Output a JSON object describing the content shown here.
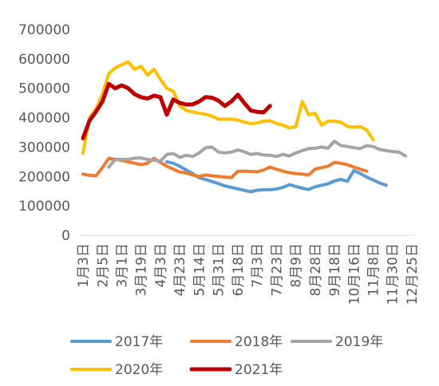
{
  "chart_data": {
    "type": "line",
    "ylim": [
      0,
      700000
    ],
    "yticks": [
      0,
      100000,
      200000,
      300000,
      400000,
      500000,
      600000,
      700000
    ],
    "x_tick_labels": [
      "1月3日",
      "2月5日",
      "3月1日",
      "3月19日",
      "4月3日",
      "4月23日",
      "5月14日",
      "5月31日",
      "6月18日",
      "7月3日",
      "7月23日",
      "8月9日",
      "8月28日",
      "9月18日",
      "10月16日",
      "11月8日",
      "11月30日",
      "12月25日"
    ],
    "x_count": 52,
    "legend_position": "bottom",
    "grid": false,
    "series": [
      {
        "name": "2017年",
        "color": "#5B9BD5",
        "x_start": 13,
        "values": [
          250000,
          245000,
          235000,
          222000,
          210000,
          196000,
          190000,
          183000,
          176000,
          168000,
          163000,
          158000,
          153000,
          148000,
          153000,
          155000,
          155000,
          157000,
          163000,
          172000,
          166000,
          160000,
          156000,
          165000,
          170000,
          175000,
          185000,
          190000,
          184000,
          220000,
          210000,
          198000,
          188000,
          178000,
          170000
        ]
      },
      {
        "name": "2018年",
        "color": "#ED7D31",
        "x_start": 0,
        "values": [
          208000,
          204000,
          202000,
          230000,
          262000,
          258000,
          255000,
          250000,
          245000,
          240000,
          245000,
          262000,
          248000,
          235000,
          225000,
          215000,
          212000,
          205000,
          200000,
          205000,
          202000,
          200000,
          198000,
          196000,
          218000,
          218000,
          217000,
          216000,
          222000,
          232000,
          225000,
          218000,
          213000,
          210000,
          208000,
          205000,
          225000,
          230000,
          235000,
          248000,
          245000,
          240000,
          232000,
          225000,
          218000
        ]
      },
      {
        "name": "2019年",
        "color": "#A5A5A5",
        "x_start": 4,
        "values": [
          232000,
          258000,
          258000,
          258000,
          262000,
          263000,
          258000,
          255000,
          252000,
          275000,
          278000,
          265000,
          272000,
          268000,
          280000,
          298000,
          300000,
          283000,
          280000,
          283000,
          290000,
          284000,
          275000,
          278000,
          273000,
          272000,
          268000,
          275000,
          270000,
          280000,
          288000,
          295000,
          296000,
          300000,
          296000,
          320000,
          305000,
          302000,
          298000,
          295000,
          305000,
          302000,
          292000,
          288000,
          285000,
          283000,
          270000
        ]
      },
      {
        "name": "2020年",
        "color": "#FFC000",
        "x_start": 0,
        "values": [
          280000,
          400000,
          430000,
          480000,
          550000,
          570000,
          580000,
          590000,
          565000,
          575000,
          545000,
          565000,
          530000,
          500000,
          490000,
          440000,
          425000,
          420000,
          415000,
          412000,
          405000,
          395000,
          395000,
          395000,
          392000,
          385000,
          380000,
          382000,
          388000,
          390000,
          380000,
          375000,
          365000,
          370000,
          455000,
          410000,
          415000,
          375000,
          388000,
          388000,
          385000,
          370000,
          368000,
          370000,
          358000,
          325000
        ]
      },
      {
        "name": "2021年",
        "color": "#C00000",
        "x_start": 0,
        "values": [
          330000,
          390000,
          420000,
          455000,
          515000,
          500000,
          510000,
          500000,
          480000,
          470000,
          465000,
          475000,
          470000,
          410000,
          462000,
          450000,
          445000,
          445000,
          455000,
          470000,
          468000,
          458000,
          440000,
          455000,
          478000,
          450000,
          425000,
          420000,
          418000,
          440000
        ]
      }
    ]
  }
}
